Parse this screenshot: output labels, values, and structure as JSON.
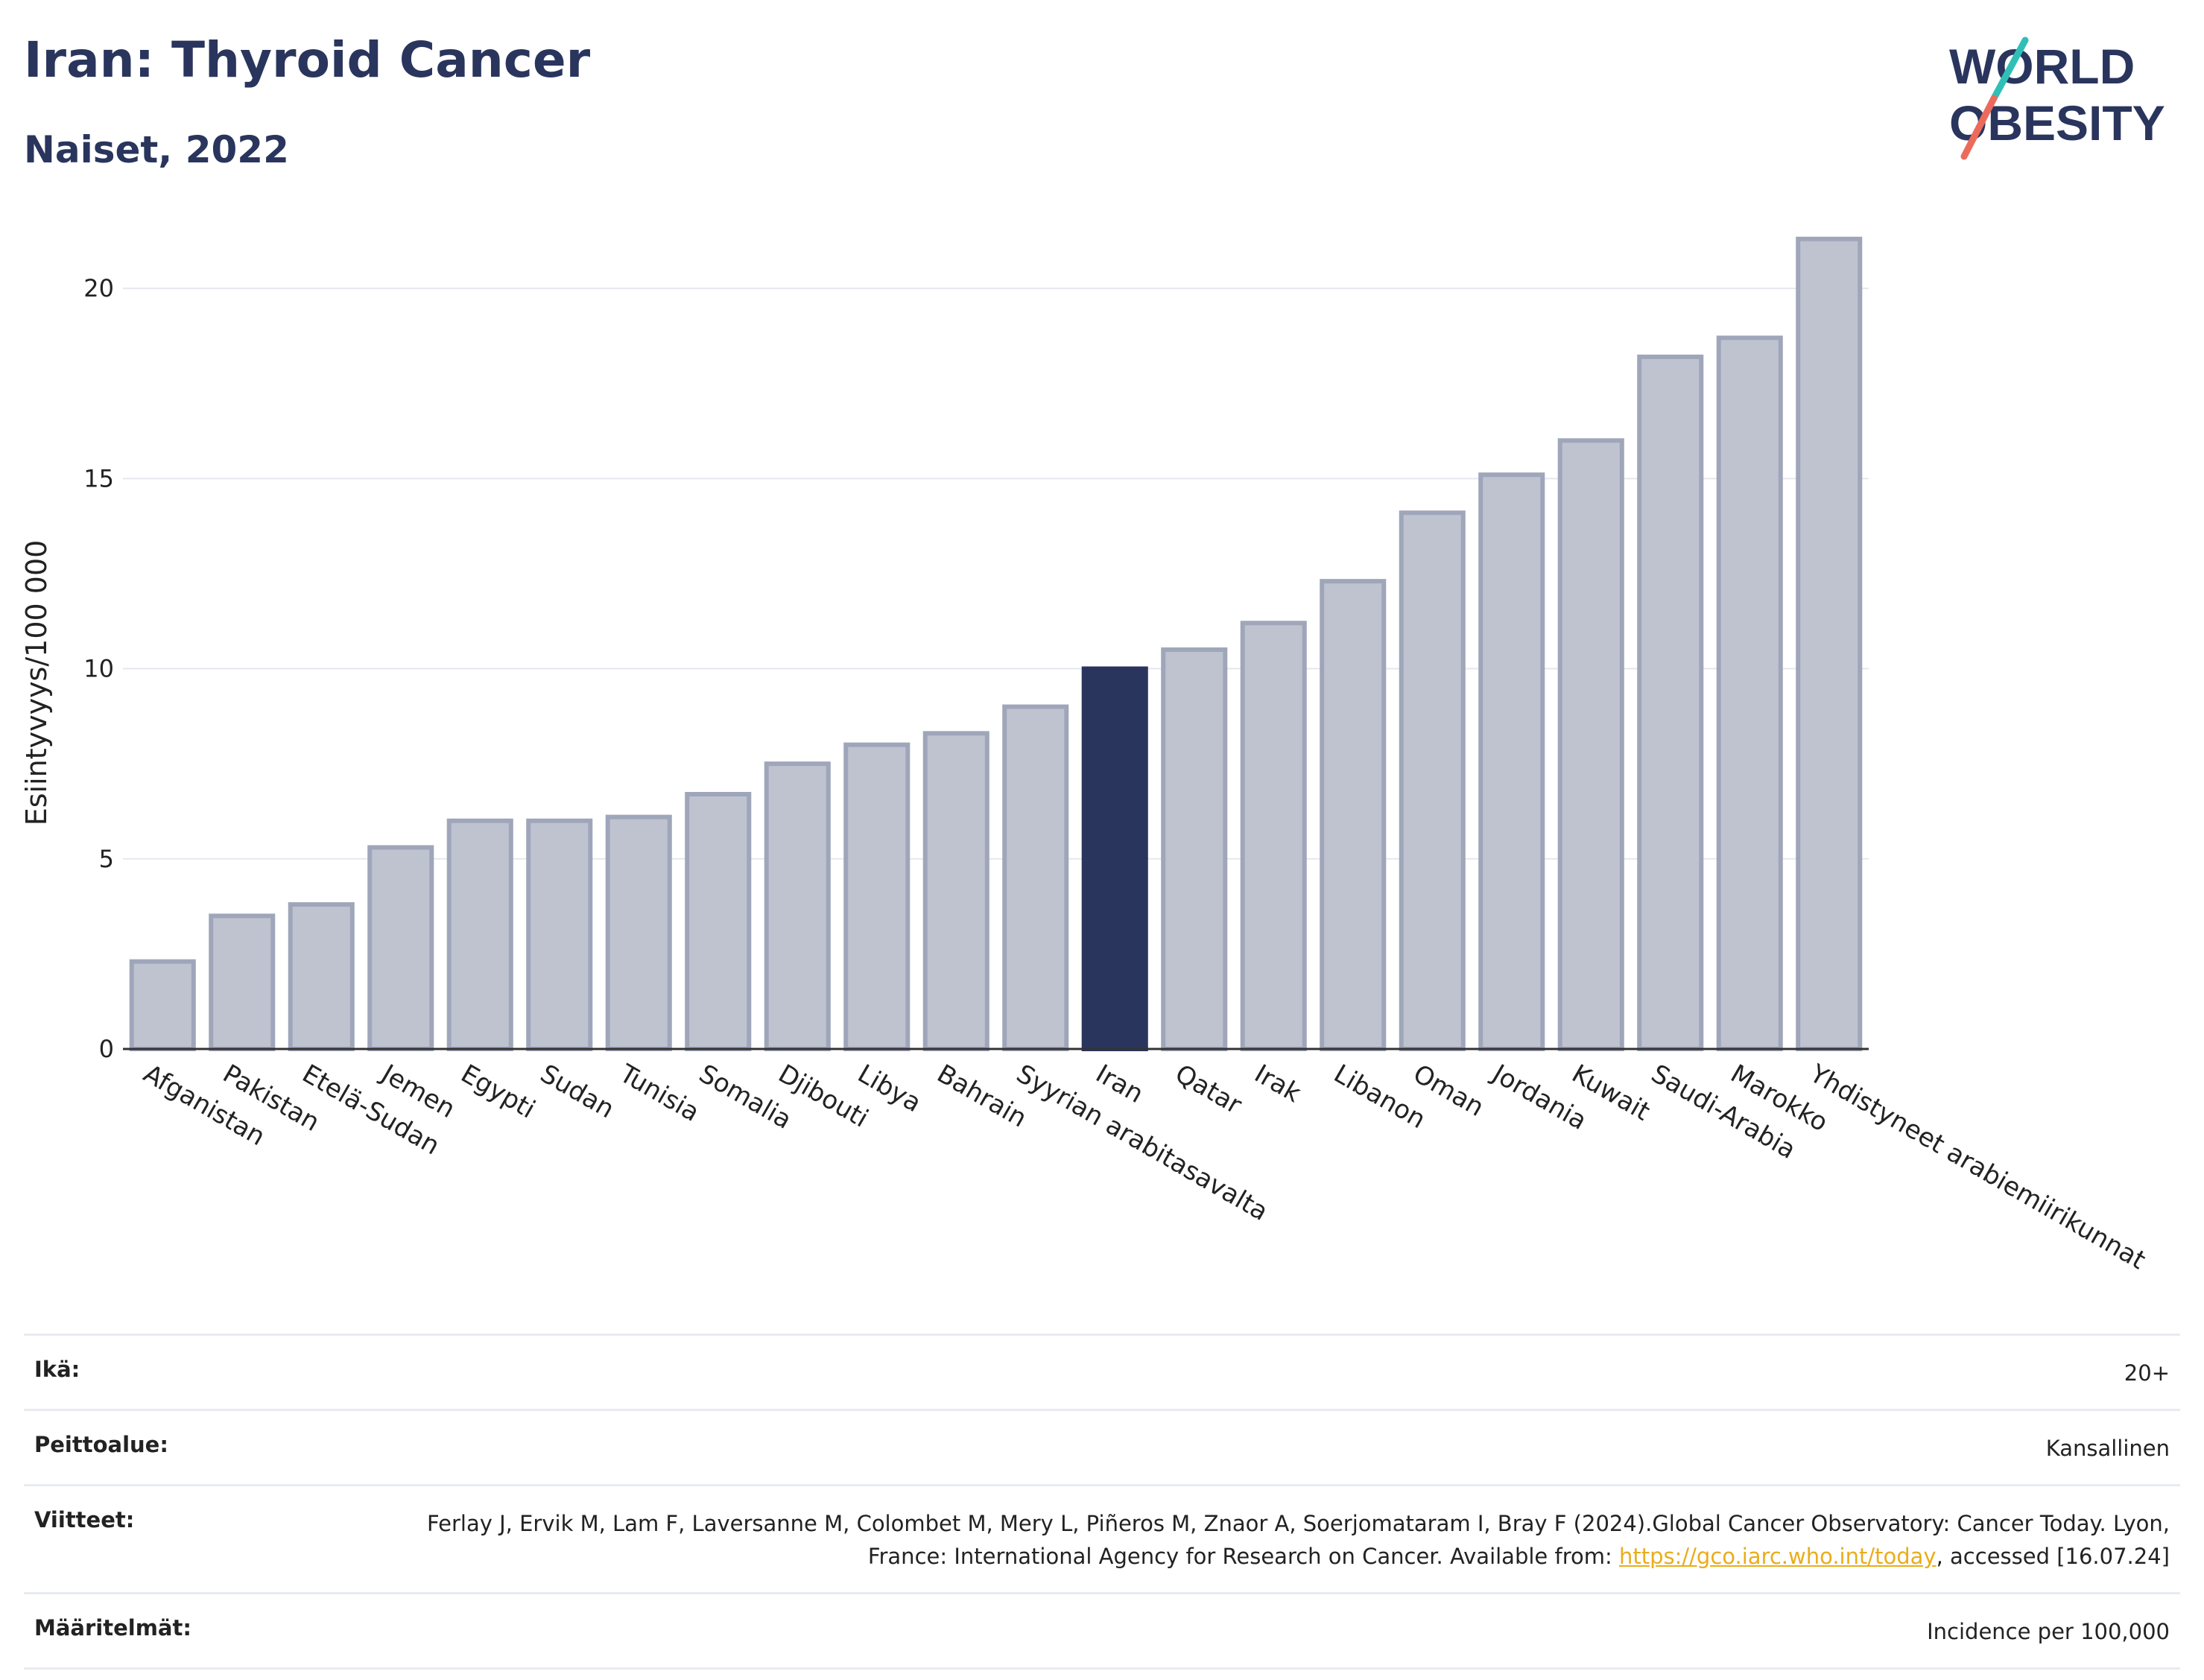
{
  "header": {
    "title": "Iran: Thyroid Cancer",
    "subtitle": "Naiset, 2022"
  },
  "logo": {
    "line1": "WORLD",
    "line2": "OBESITY"
  },
  "colors": {
    "highlight": "#2a355d",
    "bar": "#bfc3d0",
    "bar_stroke": "#9fa6ba",
    "accent_teal": "#2fbfb6",
    "accent_coral": "#ec6a5c",
    "link": "#e9ad1c"
  },
  "chart_data": {
    "type": "bar",
    "ylabel": "Esiintyvyys/100 000",
    "ylim": [
      0,
      22
    ],
    "yticks": [
      0,
      5,
      10,
      15,
      20
    ],
    "grid": true,
    "highlight": "Iran",
    "categories": [
      "Afganistan",
      "Pakistan",
      "Etelä-Sudan",
      "Jemen",
      "Egypti",
      "Sudan",
      "Tunisia",
      "Somalia",
      "Djibouti",
      "Libya",
      "Bahrain",
      "Syyrian arabitasavalta",
      "Iran",
      "Qatar",
      "Irak",
      "Libanon",
      "Oman",
      "Jordania",
      "Kuwait",
      "Saudi-Arabia",
      "Marokko",
      "Yhdistyneet arabiemiirikunnat"
    ],
    "values": [
      2.3,
      3.5,
      3.8,
      5.3,
      6.0,
      6.0,
      6.1,
      6.7,
      7.5,
      8.0,
      8.3,
      9.0,
      10.0,
      10.5,
      11.2,
      12.3,
      14.1,
      15.1,
      16.0,
      18.2,
      18.7,
      21.3
    ]
  },
  "meta": [
    {
      "label": "Ikä:",
      "value": "20+"
    },
    {
      "label": "Peittoalue:",
      "value": "Kansallinen"
    },
    {
      "label": "Viitteet:",
      "value_pre": "Ferlay J, Ervik M, Lam F, Laversanne M, Colombet M, Mery L, Piñeros M, Znaor A, Soerjomataram I, Bray F (2024).Global Cancer Observatory: Cancer Today. Lyon, France: International Agency for Research on Cancer. Available from: ",
      "link": "https://gco.iarc.who.int/today",
      "value_post": ", accessed [16.07.24]"
    },
    {
      "label": "Määritelmät:",
      "value": "Incidence per 100,000"
    }
  ]
}
